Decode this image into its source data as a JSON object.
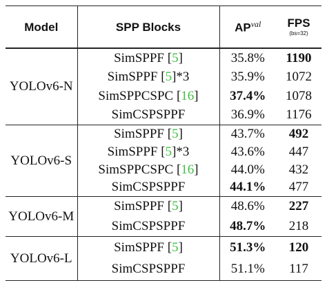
{
  "header": {
    "model": "Model",
    "spp": "SPP Blocks",
    "ap": {
      "text": "AP",
      "sup": "val"
    },
    "fps": {
      "text": "FPS",
      "sub": "(bs=32)"
    }
  },
  "cite_color": "#3fbf3f",
  "groups": [
    {
      "model": "YOLOv6-N",
      "rows": [
        {
          "block": [
            {
              "text": "SimSPPF "
            },
            {
              "text": "["
            },
            {
              "text": "5",
              "cite": true
            },
            {
              "text": "]"
            }
          ],
          "ap": "35.8%",
          "fps": "1190",
          "bold": [
            "fps"
          ]
        },
        {
          "block": [
            {
              "text": "SimSPPF "
            },
            {
              "text": "["
            },
            {
              "text": "5",
              "cite": true
            },
            {
              "text": "]"
            },
            {
              "text": "*3"
            }
          ],
          "ap": "35.9%",
          "fps": "1072",
          "bold": []
        },
        {
          "block": [
            {
              "text": "SimSPPCSPC "
            },
            {
              "text": "["
            },
            {
              "text": "16",
              "cite": true
            },
            {
              "text": "]"
            }
          ],
          "ap": "37.4%",
          "fps": "1078",
          "bold": [
            "ap"
          ]
        },
        {
          "block": [
            {
              "text": "SimCSPSPPF"
            }
          ],
          "ap": "36.9%",
          "fps": "1176",
          "bold": []
        }
      ]
    },
    {
      "model": "YOLOv6-S",
      "rows": [
        {
          "block": [
            {
              "text": "SimSPPF "
            },
            {
              "text": "["
            },
            {
              "text": "5",
              "cite": true
            },
            {
              "text": "]"
            }
          ],
          "ap": "43.7%",
          "fps": "492",
          "bold": [
            "fps"
          ]
        },
        {
          "block": [
            {
              "text": "SimSPPF "
            },
            {
              "text": "["
            },
            {
              "text": "5",
              "cite": true
            },
            {
              "text": "]"
            },
            {
              "text": "*3"
            }
          ],
          "ap": "43.6%",
          "fps": "447",
          "bold": []
        },
        {
          "block": [
            {
              "text": "SimSPPCSPC "
            },
            {
              "text": "["
            },
            {
              "text": "16",
              "cite": true
            },
            {
              "text": "]"
            }
          ],
          "ap": "44.0%",
          "fps": "432",
          "bold": []
        },
        {
          "block": [
            {
              "text": "SimCSPSPPF"
            }
          ],
          "ap": "44.1%",
          "fps": "477",
          "bold": [
            "ap"
          ]
        }
      ]
    },
    {
      "model": "YOLOv6-M",
      "rows": [
        {
          "block": [
            {
              "text": "SimSPPF "
            },
            {
              "text": "["
            },
            {
              "text": "5",
              "cite": true
            },
            {
              "text": "]"
            }
          ],
          "ap": "48.6%",
          "fps": "227",
          "bold": [
            "fps"
          ]
        },
        {
          "block": [
            {
              "text": "SimCSPSPPF"
            }
          ],
          "ap": "48.7%",
          "fps": "218",
          "bold": [
            "ap"
          ]
        }
      ]
    },
    {
      "model": "YOLOv6-L",
      "rows": [
        {
          "block": [
            {
              "text": "SimSPPF "
            },
            {
              "text": "["
            },
            {
              "text": "5",
              "cite": true
            },
            {
              "text": "]"
            }
          ],
          "ap": "51.3%",
          "fps": "120",
          "bold": [
            "ap",
            "fps"
          ]
        },
        {
          "block": [
            {
              "text": "SimCSPSPPF"
            }
          ],
          "ap": "51.1%",
          "fps": "117",
          "bold": []
        }
      ]
    }
  ]
}
